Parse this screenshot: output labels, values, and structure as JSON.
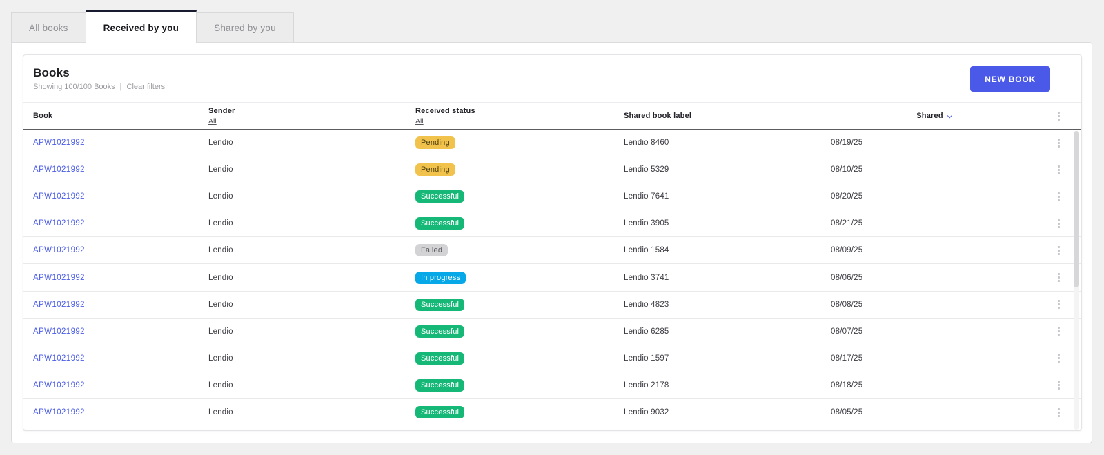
{
  "tabs": [
    {
      "label": "All books",
      "active": false
    },
    {
      "label": "Received by you",
      "active": true
    },
    {
      "label": "Shared by you",
      "active": false
    }
  ],
  "panel": {
    "title": "Books",
    "showing_text": "Showing 100/100 Books",
    "separator": "|",
    "clear_filters_label": "Clear filters",
    "new_book_label": "NEW BOOK"
  },
  "table": {
    "columns": {
      "book": {
        "label": "Book"
      },
      "sender": {
        "label": "Sender",
        "filter": "All"
      },
      "received_status": {
        "label": "Received status",
        "filter": "All"
      },
      "shared_book_label": {
        "label": "Shared book label"
      },
      "shared": {
        "label": "Shared",
        "sort": "desc"
      }
    },
    "rows": [
      {
        "book": "APW1021992",
        "sender": "Lendio",
        "status": "Pending",
        "status_type": "pending",
        "shared_book_label": "Lendio 8460",
        "shared_date": "08/19/25"
      },
      {
        "book": "APW1021992",
        "sender": "Lendio",
        "status": "Pending",
        "status_type": "pending",
        "shared_book_label": "Lendio 5329",
        "shared_date": "08/10/25"
      },
      {
        "book": "APW1021992",
        "sender": "Lendio",
        "status": "Successful",
        "status_type": "success",
        "shared_book_label": "Lendio 7641",
        "shared_date": "08/20/25"
      },
      {
        "book": "APW1021992",
        "sender": "Lendio",
        "status": "Successful",
        "status_type": "success",
        "shared_book_label": "Lendio 3905",
        "shared_date": "08/21/25"
      },
      {
        "book": "APW1021992",
        "sender": "Lendio",
        "status": "Failed",
        "status_type": "failed",
        "shared_book_label": "Lendio 1584",
        "shared_date": "08/09/25"
      },
      {
        "book": "APW1021992",
        "sender": "Lendio",
        "status": "In progress",
        "status_type": "progress",
        "shared_book_label": "Lendio 3741",
        "shared_date": "08/06/25"
      },
      {
        "book": "APW1021992",
        "sender": "Lendio",
        "status": "Successful",
        "status_type": "success",
        "shared_book_label": "Lendio 4823",
        "shared_date": "08/08/25"
      },
      {
        "book": "APW1021992",
        "sender": "Lendio",
        "status": "Successful",
        "status_type": "success",
        "shared_book_label": "Lendio 6285",
        "shared_date": "08/07/25"
      },
      {
        "book": "APW1021992",
        "sender": "Lendio",
        "status": "Successful",
        "status_type": "success",
        "shared_book_label": "Lendio 1597",
        "shared_date": "08/17/25"
      },
      {
        "book": "APW1021992",
        "sender": "Lendio",
        "status": "Successful",
        "status_type": "success",
        "shared_book_label": "Lendio 2178",
        "shared_date": "08/18/25"
      },
      {
        "book": "APW1021992",
        "sender": "Lendio",
        "status": "Successful",
        "status_type": "success",
        "shared_book_label": "Lendio 9032",
        "shared_date": "08/05/25"
      }
    ]
  },
  "icons": {
    "row_menu": "kebab-menu-icon",
    "header_menu": "kebab-menu-icon",
    "shared_sort": "chevron-down-icon"
  },
  "colors": {
    "accent": "#4b59e8",
    "link": "#4a5ce8",
    "badge_pending_bg": "#f1c34c",
    "badge_success_bg": "#16b877",
    "badge_failed_bg": "#d3d3d5",
    "badge_in_progress_bg": "#07a8e8",
    "active_tab_border": "#181a2f"
  }
}
